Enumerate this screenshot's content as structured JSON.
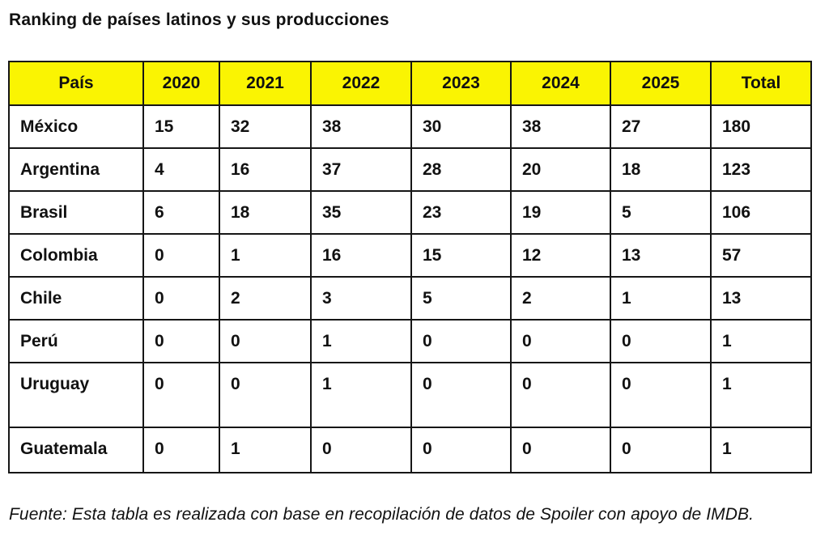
{
  "title": "Ranking de países latinos y sus producciones",
  "footer": "Fuente: Esta tabla es realizada con base en recopilación de datos de Spoiler con apoyo de IMDB.",
  "colors": {
    "header_bg": "#faf402",
    "border": "#161616",
    "text": "#111111",
    "page_bg": "#ffffff"
  },
  "table": {
    "headers": [
      "País",
      "2020",
      "2021",
      "2022",
      "2023",
      "2024",
      "2025",
      "Total"
    ],
    "rows": [
      {
        "country": "México",
        "values": [
          "15",
          "32",
          "38",
          "30",
          "38",
          "27",
          "180"
        ]
      },
      {
        "country": "Argentina",
        "values": [
          "4",
          "16",
          "37",
          "28",
          "20",
          "18",
          "123"
        ]
      },
      {
        "country": "Brasil",
        "values": [
          "6",
          "18",
          "35",
          "23",
          "19",
          "5",
          "106"
        ]
      },
      {
        "country": "Colombia",
        "values": [
          "0",
          "1",
          "16",
          "15",
          "12",
          "13",
          "57"
        ]
      },
      {
        "country": "Chile",
        "values": [
          "0",
          "2",
          "3",
          "5",
          "2",
          "1",
          "13"
        ]
      },
      {
        "country": "Perú",
        "values": [
          "0",
          "0",
          "1",
          "0",
          "0",
          "0",
          "1"
        ]
      },
      {
        "country": "Uruguay",
        "values": [
          "0",
          "0",
          "1",
          "0",
          "0",
          "0",
          "1"
        ]
      },
      {
        "country": "Guatemala",
        "values": [
          "0",
          "1",
          "0",
          "0",
          "0",
          "0",
          "1"
        ]
      }
    ]
  },
  "chart_data": {
    "type": "table",
    "title": "Ranking de países latinos y sus producciones",
    "categories": [
      "2020",
      "2021",
      "2022",
      "2023",
      "2024",
      "2025"
    ],
    "series": [
      {
        "name": "México",
        "values": [
          15,
          32,
          38,
          30,
          38,
          27
        ],
        "total": 180
      },
      {
        "name": "Argentina",
        "values": [
          4,
          16,
          37,
          28,
          20,
          18
        ],
        "total": 123
      },
      {
        "name": "Brasil",
        "values": [
          6,
          18,
          35,
          23,
          19,
          5
        ],
        "total": 106
      },
      {
        "name": "Colombia",
        "values": [
          0,
          1,
          16,
          15,
          12,
          13
        ],
        "total": 57
      },
      {
        "name": "Chile",
        "values": [
          0,
          2,
          3,
          5,
          2,
          1
        ],
        "total": 13
      },
      {
        "name": "Perú",
        "values": [
          0,
          0,
          1,
          0,
          0,
          0
        ],
        "total": 1
      },
      {
        "name": "Uruguay",
        "values": [
          0,
          0,
          1,
          0,
          0,
          0
        ],
        "total": 1
      },
      {
        "name": "Guatemala",
        "values": [
          0,
          1,
          0,
          0,
          0,
          0
        ],
        "total": 1
      }
    ],
    "annotation": "Fuente: Esta tabla es realizada con base en recopilación de datos de Spoiler con apoyo de IMDB."
  }
}
